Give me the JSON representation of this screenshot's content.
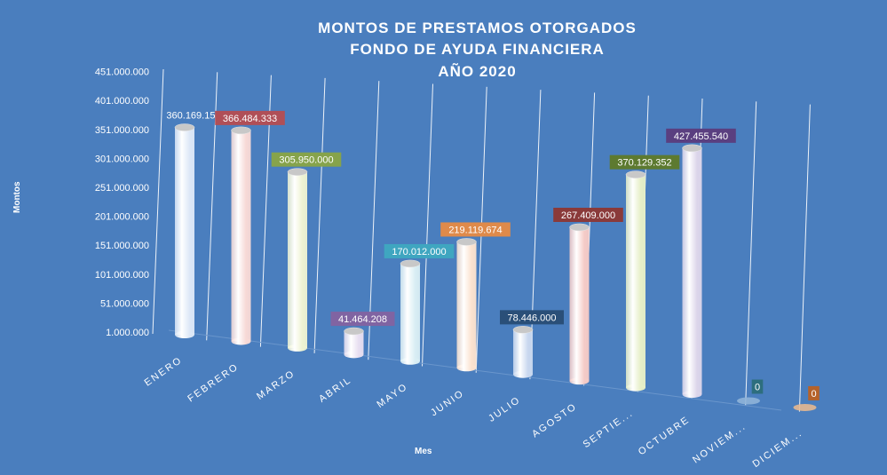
{
  "chart_data": {
    "type": "bar",
    "title": [
      "MONTOS  DE  PRESTAMOS  OTORGADOS",
      "FONDO  DE  AYUDA  FINANCIERA",
      "AÑO  2020"
    ],
    "xlabel": "Mes",
    "ylabel": "Montos",
    "categories": [
      "ENERO",
      "FEBRERO",
      "MARZO",
      "ABRIL",
      "MAYO",
      "JUNIO",
      "JULIO",
      "AGOSTO",
      "SEPTIE...",
      "OCTUBRE",
      "NOVIEM...",
      "DICIEM..."
    ],
    "values": [
      360169159,
      366484333,
      305950000,
      41464208,
      170012000,
      219119674,
      78446000,
      267409000,
      370129352,
      427455540,
      0,
      0
    ],
    "data_labels": [
      "360.169.159",
      "366.484.333",
      "305.950.000",
      "41.464.208",
      "170.012.000",
      "219.119.674",
      "78.446.000",
      "267.409.000",
      "370.129.352",
      "427.455.540",
      "0",
      "0"
    ],
    "yticks": [
      "1.000.000",
      "51.000.000",
      "101.000.000",
      "151.000.000",
      "201.000.000",
      "251.000.000",
      "301.000.000",
      "351.000.000",
      "401.000.000",
      "451.000.000"
    ],
    "ylim": [
      1000000,
      451000000
    ],
    "grid": true,
    "colors": {
      "background": "#4a7ebe",
      "bars": [
        "#dde8f7",
        "#f7d9d6",
        "#eef3d2",
        "#e7def0",
        "#d9eef4",
        "#fbe2cf",
        "#c9d8ef",
        "#f5cbc7",
        "#e6efc7",
        "#dcd5ea",
        "#8fb4d8",
        "#e6b890"
      ],
      "labels": [
        "#4a7ebe",
        "#b04f57",
        "#86a34b",
        "#8064a2",
        "#3fa6c0",
        "#df8a4a",
        "#2a4f78",
        "#8a3a3a",
        "#5d7a30",
        "#5a3f80",
        "#2d6e7e",
        "#b5622a"
      ]
    }
  }
}
